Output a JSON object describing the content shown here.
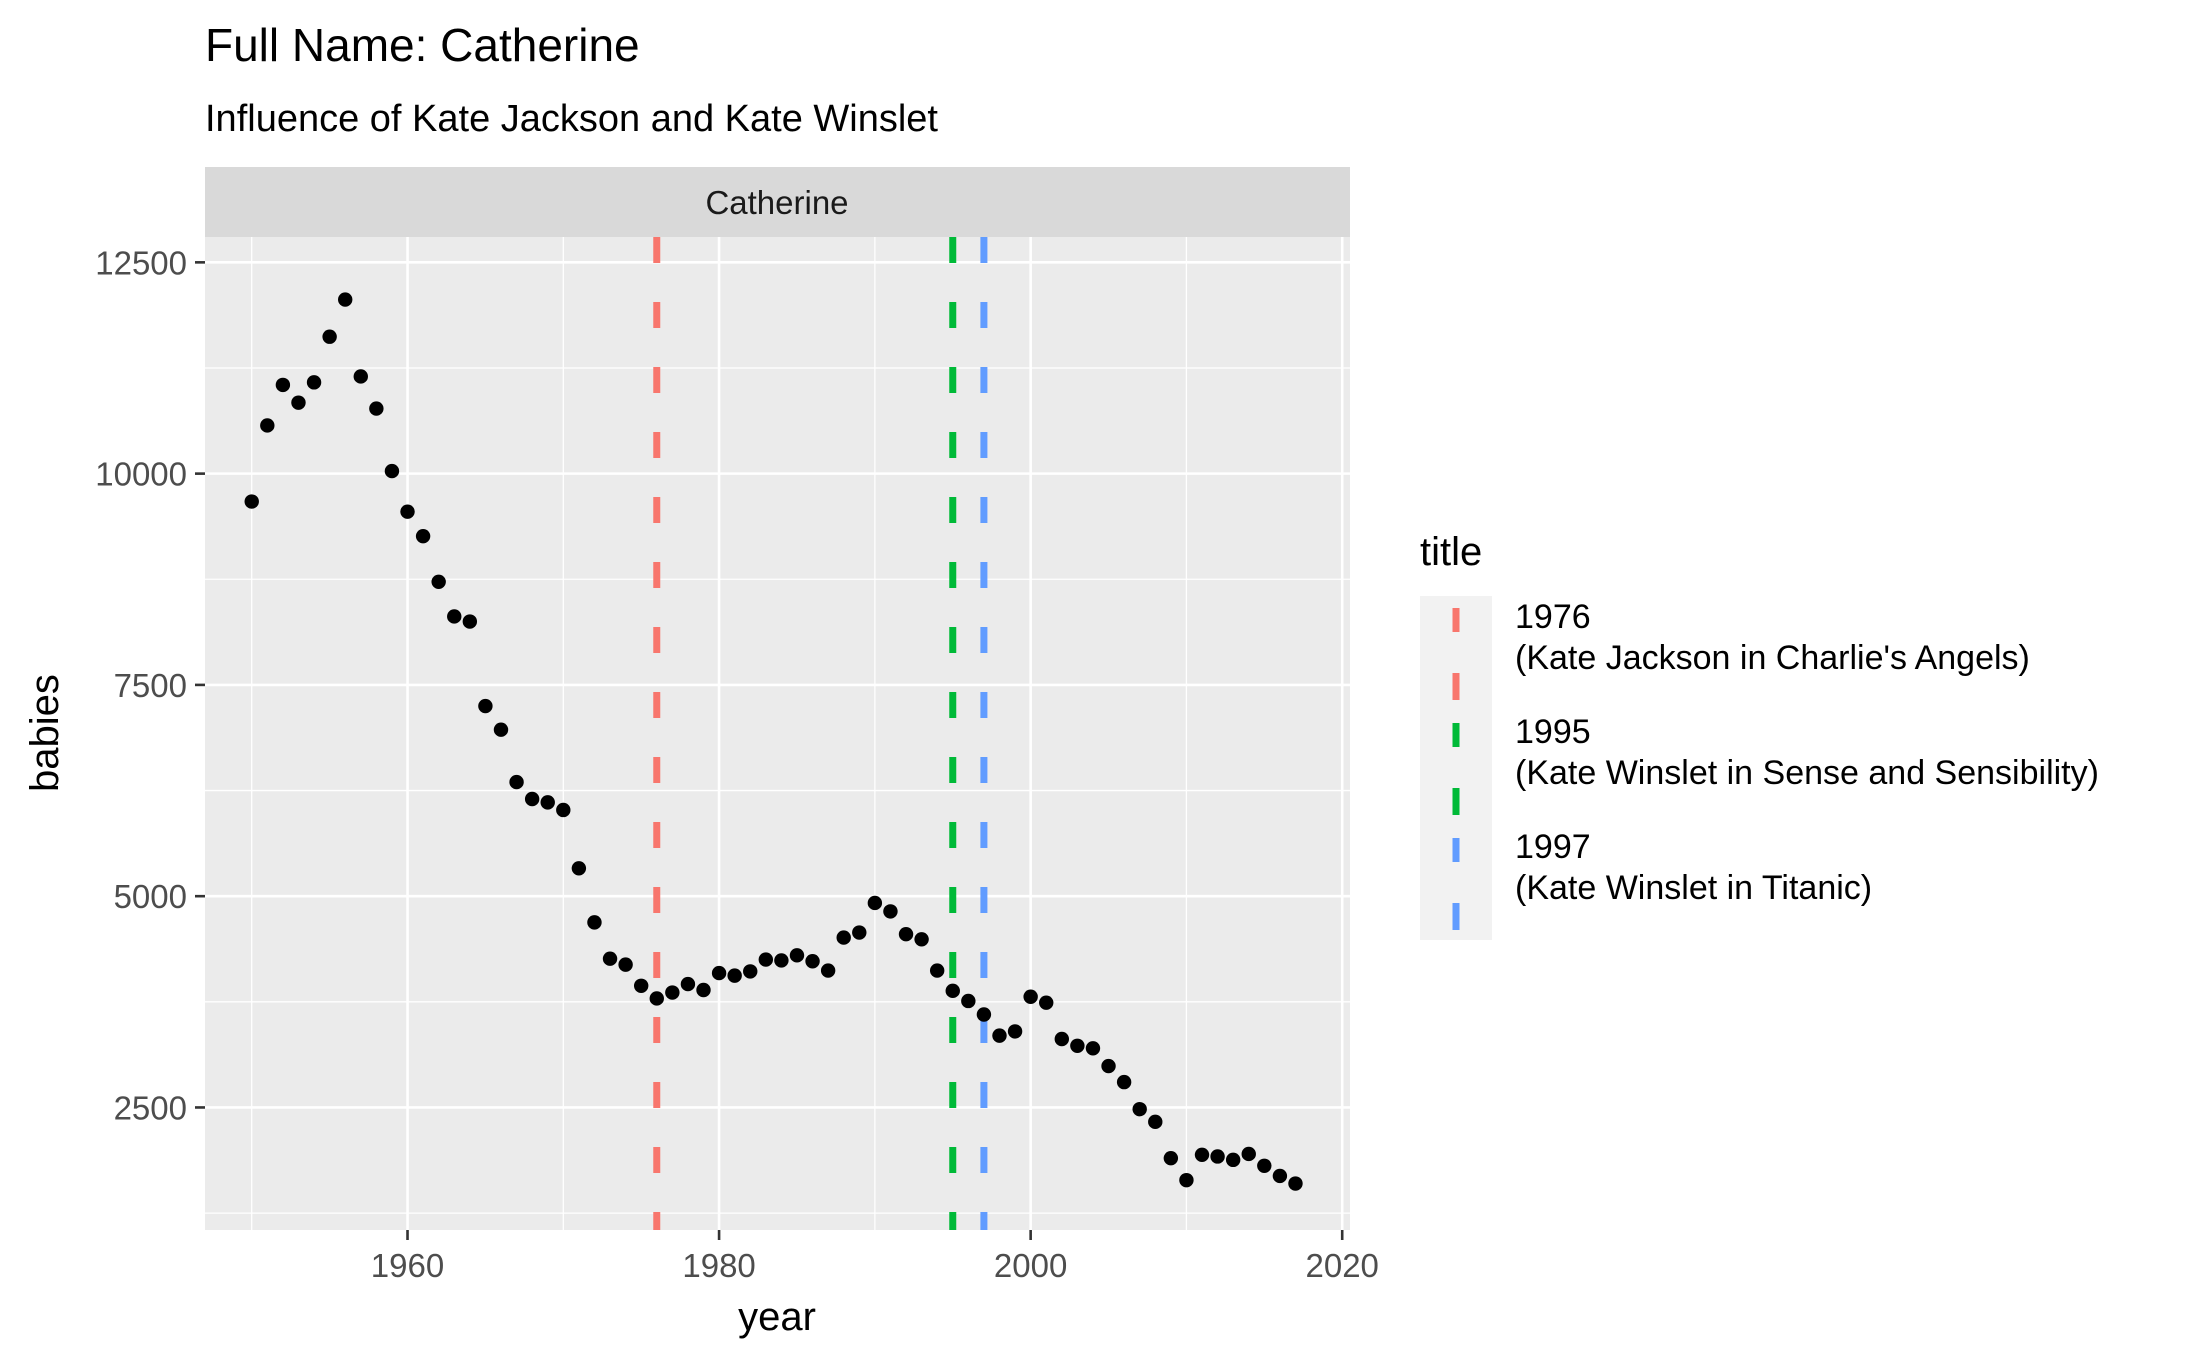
{
  "chart_data": {
    "type": "scatter",
    "title": "Full Name: Catherine",
    "subtitle": "Influence of Kate Jackson and Kate Winslet",
    "facet_label": "Catherine",
    "xlabel": "year",
    "ylabel": "babies",
    "xlim": [
      1947,
      2020.5
    ],
    "ylim": [
      1050,
      12800
    ],
    "x_ticks": [
      1960,
      1980,
      2000,
      2020
    ],
    "y_ticks": [
      2500,
      5000,
      7500,
      10000,
      12500
    ],
    "x_tick_labels": [
      "1960",
      "1980",
      "2000",
      "2020"
    ],
    "y_tick_labels": [
      "2500",
      "5000",
      "7500",
      "10000",
      "12500"
    ],
    "grid": true,
    "point_color": "#000000",
    "panel_background": "#ebebeb",
    "strip_background": "#d9d9d9",
    "series": [
      {
        "x": [
          1950,
          1951,
          1952,
          1953,
          1954,
          1955,
          1956,
          1957,
          1958,
          1959,
          1960,
          1961,
          1962,
          1963,
          1964,
          1965,
          1966,
          1967,
          1968,
          1969,
          1970,
          1971,
          1972,
          1973,
          1974,
          1975,
          1976,
          1977,
          1978,
          1979,
          1980,
          1981,
          1982,
          1983,
          1984,
          1985,
          1986,
          1987,
          1988,
          1989,
          1990,
          1991,
          1992,
          1993,
          1994,
          1995,
          1996,
          1997,
          1998,
          1999,
          2000,
          2001,
          2002,
          2003,
          2004,
          2005,
          2006,
          2007,
          2008,
          2009,
          2010,
          2011,
          2012,
          2013,
          2014,
          2015,
          2016,
          2017
        ],
        "y": [
          9670,
          10570,
          11050,
          10840,
          11080,
          11620,
          12060,
          11150,
          10770,
          10030,
          9550,
          9260,
          8720,
          8310,
          8250,
          7250,
          6970,
          6350,
          6150,
          6110,
          6020,
          5330,
          4690,
          4260,
          4190,
          3940,
          3790,
          3860,
          3960,
          3890,
          4090,
          4060,
          4110,
          4250,
          4240,
          4300,
          4230,
          4120,
          4510,
          4570,
          4920,
          4820,
          4550,
          4490,
          4120,
          3880,
          3760,
          3600,
          3350,
          3400,
          3810,
          3740,
          3310,
          3230,
          3200,
          2990,
          2800,
          2480,
          2330,
          1900,
          1640,
          1940,
          1920,
          1880,
          1950,
          1810,
          1690,
          1600
        ]
      }
    ],
    "vlines": [
      {
        "x": 1976,
        "color": "#f8766d"
      },
      {
        "x": 1995,
        "color": "#00ba38"
      },
      {
        "x": 1997,
        "color": "#619cff"
      }
    ],
    "legend": {
      "title": "title",
      "placement": "right",
      "entries": [
        {
          "line1": "1976",
          "line2": " (Kate Jackson in Charlie's Angels)",
          "color": "#f8766d"
        },
        {
          "line1": "1995",
          "line2": " (Kate Winslet in Sense and Sensibility)",
          "color": "#00ba38"
        },
        {
          "line1": "1997",
          "line2": " (Kate Winslet in Titanic)",
          "color": "#619cff"
        }
      ]
    }
  }
}
